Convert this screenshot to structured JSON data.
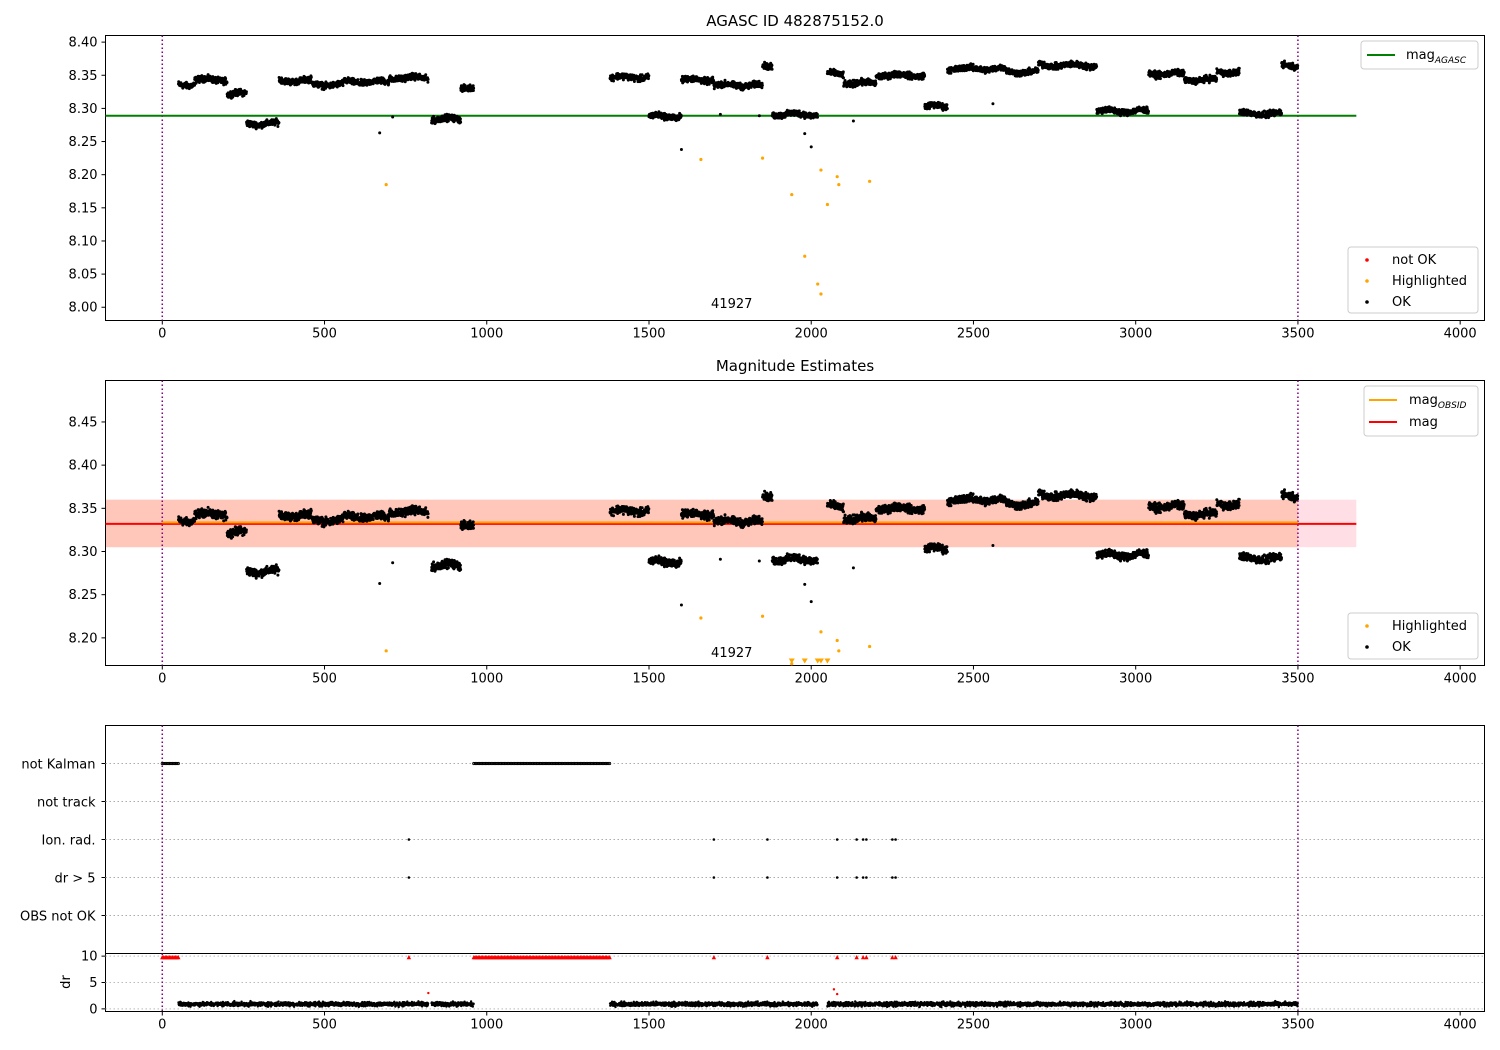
{
  "figure": {
    "panels": {
      "top": {
        "title": "AGASC ID 482875152.0",
        "annotation": "41927",
        "ylim": [
          7.98,
          8.41
        ],
        "yticks": [
          "8.00",
          "8.05",
          "8.10",
          "8.15",
          "8.20",
          "8.25",
          "8.30",
          "8.35",
          "8.40"
        ],
        "legend_upper": {
          "label_main": "mag",
          "label_sub": "AGASC"
        },
        "legend_lower": [
          "not OK",
          "Highlighted",
          "OK"
        ]
      },
      "middle": {
        "title": "Magnitude Estimates",
        "annotation": "41927",
        "ylim": [
          8.168,
          8.498
        ],
        "yticks": [
          "8.20",
          "8.25",
          "8.30",
          "8.35",
          "8.40",
          "8.45"
        ],
        "legend_upper": [
          {
            "label_main": "mag",
            "label_sub": "OBSID"
          },
          {
            "label_main": "mag",
            "label_sub": ""
          }
        ],
        "legend_lower": [
          "Highlighted",
          "OK"
        ]
      },
      "flags": {
        "labels": [
          "not Kalman",
          "not track",
          "Ion. rad.",
          "dr > 5",
          "OBS not OK"
        ]
      },
      "dr": {
        "ylabel": "dr",
        "yticks": [
          "0",
          "5",
          "10"
        ],
        "ylim": [
          -0.5,
          10.5
        ]
      }
    },
    "xticks": [
      "0",
      "500",
      "1000",
      "1500",
      "2000",
      "2500",
      "3000",
      "3500",
      "4000"
    ]
  },
  "chart_data": {
    "type": "scatter",
    "xlim": [
      -175,
      4075
    ],
    "vertical_lines_x": [
      0,
      3500
    ],
    "mag_agasc": 8.289,
    "mag_obsid": 8.332,
    "mag": 8.332,
    "mag_band": [
      8.305,
      8.36
    ],
    "colors": {
      "ok": "#000000",
      "highlighted": "#ffa500",
      "not_ok": "#ff0000",
      "mag_agasc": "#008000",
      "mag": "#ff0000",
      "mag_obsid": "#ffa500",
      "vline": "#800080",
      "band_orange": "#ffa07a",
      "band_pink": "#ffc0cb"
    },
    "segments": [
      {
        "x": [
          50,
          100
        ],
        "level": 8.336
      },
      {
        "x": [
          100,
          200
        ],
        "level": 8.343
      },
      {
        "x": [
          200,
          260
        ],
        "level": 8.322
      },
      {
        "x": [
          260,
          360
        ],
        "level": 8.277
      },
      {
        "x": [
          360,
          460
        ],
        "level": 8.342
      },
      {
        "x": [
          460,
          560
        ],
        "level": 8.336
      },
      {
        "x": [
          560,
          700
        ],
        "level": 8.34
      },
      {
        "x": [
          700,
          820
        ],
        "level": 8.346
      },
      {
        "x": [
          830,
          920
        ],
        "level": 8.284
      },
      {
        "x": [
          920,
          960
        ],
        "level": 8.332
      },
      {
        "x": [
          1380,
          1500
        ],
        "level": 8.347
      },
      {
        "x": [
          1500,
          1600
        ],
        "level": 8.288
      },
      {
        "x": [
          1600,
          1700
        ],
        "level": 8.343
      },
      {
        "x": [
          1700,
          1850
        ],
        "level": 8.335
      },
      {
        "x": [
          1850,
          1880
        ],
        "level": 8.363
      },
      {
        "x": [
          1880,
          2020
        ],
        "level": 8.291
      },
      {
        "x": [
          2050,
          2100
        ],
        "level": 8.352
      },
      {
        "x": [
          2100,
          2200
        ],
        "level": 8.338
      },
      {
        "x": [
          2200,
          2350
        ],
        "level": 8.35
      },
      {
        "x": [
          2350,
          2420
        ],
        "level": 8.303
      },
      {
        "x": [
          2420,
          2600
        ],
        "level": 8.36
      },
      {
        "x": [
          2600,
          2700
        ],
        "level": 8.355
      },
      {
        "x": [
          2700,
          2880
        ],
        "level": 8.365
      },
      {
        "x": [
          2880,
          3040
        ],
        "level": 8.296
      },
      {
        "x": [
          3040,
          3150
        ],
        "level": 8.352
      },
      {
        "x": [
          3150,
          3250
        ],
        "level": 8.343
      },
      {
        "x": [
          3250,
          3320
        ],
        "level": 8.355
      },
      {
        "x": [
          3320,
          3450
        ],
        "level": 8.292
      },
      {
        "x": [
          3450,
          3500
        ],
        "level": 8.365
      }
    ],
    "ok_outliers": [
      [
        670,
        8.263
      ],
      [
        710,
        8.287
      ],
      [
        1600,
        8.238
      ],
      [
        1980,
        8.262
      ],
      [
        2000,
        8.242
      ],
      [
        2130,
        8.281
      ],
      [
        1720,
        8.291
      ],
      [
        1840,
        8.289
      ],
      [
        2560,
        8.307
      ]
    ],
    "highlighted": [
      [
        690,
        8.185
      ],
      [
        1660,
        8.223
      ],
      [
        1850,
        8.225
      ],
      [
        1940,
        8.17
      ],
      [
        1980,
        8.077
      ],
      [
        2020,
        8.035
      ],
      [
        2030,
        8.207
      ],
      [
        2030,
        8.02
      ],
      [
        2050,
        8.155
      ],
      [
        2080,
        8.197
      ],
      [
        2085,
        8.185
      ],
      [
        2180,
        8.19
      ]
    ],
    "highlighted_below_range_x": [
      1940,
      1980,
      2020,
      2030,
      2050
    ],
    "annotation_xy": [
      1755,
      8.0
    ],
    "flag_not_kalman_x": [
      [
        0,
        50
      ],
      [
        960,
        1380
      ]
    ],
    "flag_ion_rad_x": [
      760,
      1700,
      1865,
      2080,
      2140,
      2160,
      2170,
      2250,
      2260
    ],
    "flag_dr_gt5_x": [
      760,
      1700,
      1865,
      2080,
      2140,
      2160,
      2170,
      2250,
      2260
    ],
    "dr_clipped_x_ranges": [
      [
        0,
        50
      ],
      [
        960,
        1380
      ]
    ],
    "dr_clipped_single_x": [
      760,
      1700,
      1865,
      2080,
      2140,
      2160,
      2170,
      2250,
      2260
    ],
    "dr_red_points": [
      [
        820,
        3.0
      ],
      [
        2070,
        3.7
      ],
      [
        2080,
        2.8
      ]
    ]
  }
}
